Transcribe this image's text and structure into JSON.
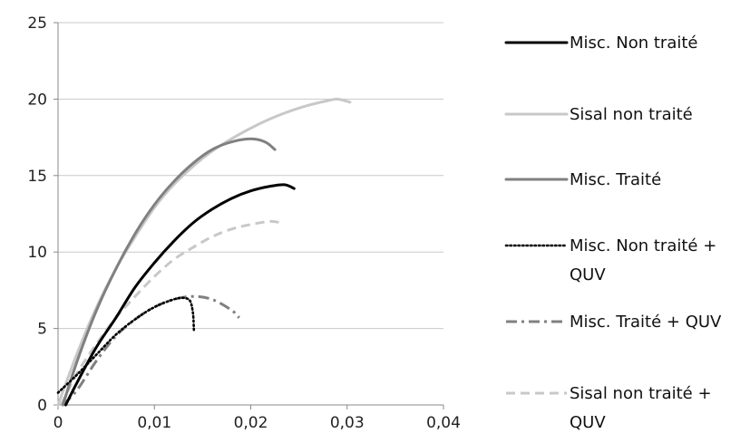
{
  "chart_data": {
    "type": "line",
    "title": "",
    "xlabel": "",
    "ylabel": "",
    "xlim": [
      0,
      0.04
    ],
    "ylim": [
      0,
      25
    ],
    "x_ticks": [
      0,
      0.01,
      0.02,
      0.03,
      0.04
    ],
    "x_tick_labels": [
      "0",
      "0,01",
      "0,02",
      "0,03",
      "0,04"
    ],
    "y_ticks": [
      0,
      5,
      10,
      15,
      20,
      25
    ],
    "y_tick_labels": [
      "0",
      "5",
      "10",
      "15",
      "20",
      "25"
    ],
    "grid": "horizontal",
    "legend_position": "right",
    "series": [
      {
        "name": "Misc. Non traité",
        "color": "#000000",
        "dash": "solid",
        "points": [
          [
            0.0008,
            0.0
          ],
          [
            0.002,
            1.5
          ],
          [
            0.004,
            3.8
          ],
          [
            0.006,
            5.7
          ],
          [
            0.008,
            7.7
          ],
          [
            0.01,
            9.3
          ],
          [
            0.012,
            10.7
          ],
          [
            0.014,
            11.9
          ],
          [
            0.016,
            12.8
          ],
          [
            0.018,
            13.5
          ],
          [
            0.02,
            14.0
          ],
          [
            0.022,
            14.3
          ],
          [
            0.0235,
            14.4
          ],
          [
            0.0245,
            14.15
          ]
        ]
      },
      {
        "name": "Sisal non traité",
        "color": "#c8c8c8",
        "dash": "solid",
        "points": [
          [
            0.0,
            0.0
          ],
          [
            0.002,
            3.4
          ],
          [
            0.004,
            6.4
          ],
          [
            0.006,
            8.9
          ],
          [
            0.008,
            11.0
          ],
          [
            0.01,
            12.9
          ],
          [
            0.012,
            14.4
          ],
          [
            0.014,
            15.6
          ],
          [
            0.016,
            16.6
          ],
          [
            0.018,
            17.4
          ],
          [
            0.02,
            18.1
          ],
          [
            0.022,
            18.7
          ],
          [
            0.024,
            19.2
          ],
          [
            0.026,
            19.6
          ],
          [
            0.028,
            19.9
          ],
          [
            0.029,
            20.0
          ],
          [
            0.0303,
            19.8
          ]
        ]
      },
      {
        "name": "Misc. Traité",
        "color": "#808080",
        "dash": "solid",
        "points": [
          [
            0.0005,
            0.0
          ],
          [
            0.002,
            2.9
          ],
          [
            0.004,
            6.2
          ],
          [
            0.006,
            8.9
          ],
          [
            0.008,
            11.2
          ],
          [
            0.01,
            13.1
          ],
          [
            0.012,
            14.6
          ],
          [
            0.014,
            15.8
          ],
          [
            0.016,
            16.7
          ],
          [
            0.018,
            17.2
          ],
          [
            0.02,
            17.4
          ],
          [
            0.0215,
            17.2
          ],
          [
            0.0225,
            16.7
          ]
        ]
      },
      {
        "name": "Misc. Non traité + QUV",
        "color": "#000000",
        "dash": "dotted",
        "points": [
          [
            0.0,
            0.8
          ],
          [
            0.002,
            2.0
          ],
          [
            0.004,
            3.3
          ],
          [
            0.006,
            4.6
          ],
          [
            0.008,
            5.6
          ],
          [
            0.01,
            6.4
          ],
          [
            0.012,
            6.9
          ],
          [
            0.013,
            7.0
          ],
          [
            0.0137,
            6.8
          ],
          [
            0.014,
            6.0
          ],
          [
            0.0141,
            4.9
          ]
        ]
      },
      {
        "name": "Misc. Traité + QUV",
        "color": "#808080",
        "dash": "dashdot",
        "points": [
          [
            0.0005,
            0.0
          ],
          [
            0.002,
            1.0
          ],
          [
            0.004,
            2.9
          ],
          [
            0.006,
            4.5
          ],
          [
            0.008,
            5.6
          ],
          [
            0.01,
            6.4
          ],
          [
            0.012,
            6.9
          ],
          [
            0.014,
            7.1
          ],
          [
            0.016,
            6.9
          ],
          [
            0.018,
            6.2
          ],
          [
            0.0188,
            5.7
          ]
        ]
      },
      {
        "name": "Sisal non traité + QUV",
        "color": "#c8c8c8",
        "dash": "dashed",
        "points": [
          [
            0.0003,
            0.0
          ],
          [
            0.002,
            2.1
          ],
          [
            0.004,
            4.0
          ],
          [
            0.006,
            5.7
          ],
          [
            0.008,
            7.1
          ],
          [
            0.01,
            8.4
          ],
          [
            0.012,
            9.5
          ],
          [
            0.014,
            10.3
          ],
          [
            0.016,
            11.0
          ],
          [
            0.018,
            11.5
          ],
          [
            0.02,
            11.8
          ],
          [
            0.022,
            12.0
          ],
          [
            0.0232,
            11.9
          ]
        ]
      }
    ]
  },
  "legend": {
    "entries": [
      {
        "lines": [
          "Misc. Non traité"
        ]
      },
      {
        "lines": [
          "Sisal non traité"
        ]
      },
      {
        "lines": [
          "Misc. Traité"
        ]
      },
      {
        "lines": [
          "Misc. Non traité +",
          "QUV"
        ]
      },
      {
        "lines": [
          "Misc. Traité + QUV"
        ]
      },
      {
        "lines": [
          "Sisal non traité +",
          "QUV"
        ]
      }
    ]
  }
}
